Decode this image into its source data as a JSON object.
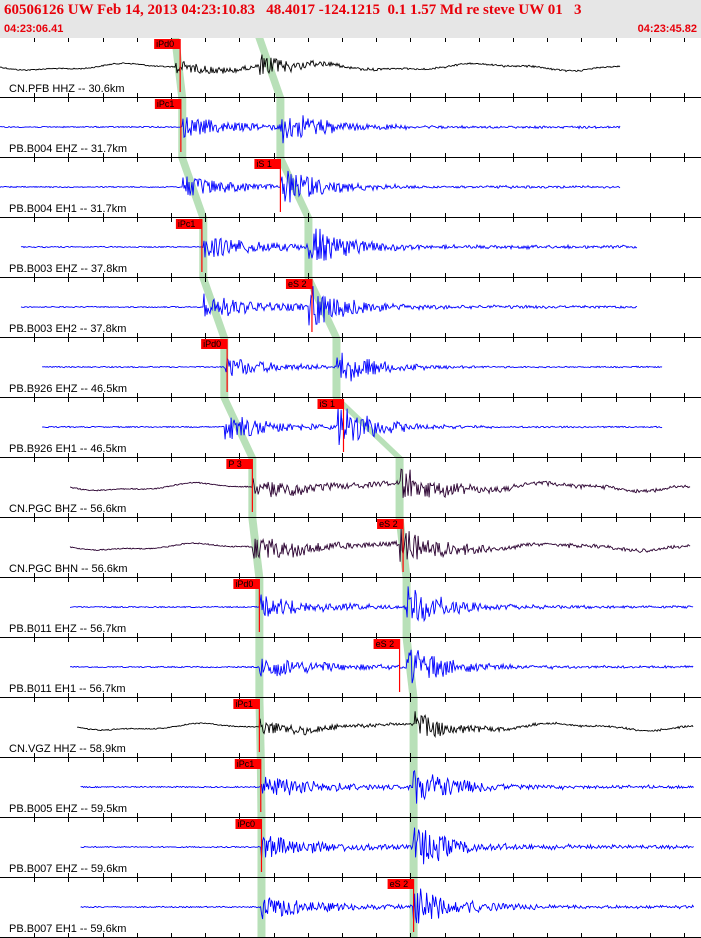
{
  "header": {
    "title": "60506126 UW Feb 14, 2013 04:23:10.83   48.4017 -124.1215  0.1 1.57 Md re steve UW 01   3",
    "start_time": "04:23:06.41",
    "end_time": "04:23:45.82"
  },
  "colors": {
    "header_bg": "#e6e6e6",
    "header_text": "#e8000a",
    "trace_blue": "#0000ff",
    "trace_black": "#000000",
    "trace_purple": "#2a0030",
    "pick_red": "#ff0000",
    "theory_green": "#b8e0b8"
  },
  "chart_data": {
    "type": "line",
    "title": "60506126 UW Feb 14, 2013 04:23:10.83   48.4017 -124.1215  0.1 1.57 Md re steve UW 01   3",
    "x_range": [
      "04:23:06.41",
      "04:23:45.82"
    ],
    "channels": [
      {
        "name": "CN.PFB HHZ -- 30.6km",
        "color": "black",
        "start": 0,
        "end": 0.885,
        "p_arrival": 0.25,
        "s_arrival": 0.37,
        "amp": 0.45,
        "coda": 0.1,
        "lowfreq": 0.35,
        "picks": [
          {
            "label": "iPd0",
            "t": 0.257
          }
        ]
      },
      {
        "name": "PB.B004 EHZ -- 31.7km",
        "color": "blue",
        "start": 0,
        "end": 0.885,
        "p_arrival": 0.26,
        "s_arrival": 0.4,
        "amp": 0.7,
        "coda": 0.12,
        "lowfreq": 0,
        "picks": [
          {
            "label": "iPc1",
            "t": 0.258
          }
        ]
      },
      {
        "name": "PB.B004 EH1 -- 31.7km",
        "color": "blue",
        "start": 0,
        "end": 0.885,
        "p_arrival": 0.26,
        "s_arrival": 0.4,
        "amp": 0.75,
        "coda": 0.1,
        "lowfreq": 0,
        "picks": [
          {
            "label": "iS 1",
            "t": 0.4
          }
        ]
      },
      {
        "name": "PB.B003 EHZ -- 37.8km",
        "color": "blue",
        "start": 0.03,
        "end": 0.91,
        "p_arrival": 0.29,
        "s_arrival": 0.44,
        "amp": 0.8,
        "coda": 0.15,
        "lowfreq": 0,
        "picks": [
          {
            "label": "iPc1",
            "t": 0.288
          }
        ]
      },
      {
        "name": "PB.B003 EH2 -- 37.8km",
        "color": "blue",
        "start": 0.03,
        "end": 0.91,
        "p_arrival": 0.29,
        "s_arrival": 0.44,
        "amp": 0.85,
        "coda": 0.12,
        "lowfreq": 0,
        "picks": [
          {
            "label": "eS 2",
            "t": 0.445
          }
        ]
      },
      {
        "name": "PB.B926 EHZ -- 46.5km",
        "color": "blue",
        "start": 0.06,
        "end": 0.945,
        "p_arrival": 0.32,
        "s_arrival": 0.48,
        "amp": 0.75,
        "coda": 0.02,
        "lowfreq": 0,
        "picks": [
          {
            "label": "iPd0",
            "t": 0.324
          }
        ]
      },
      {
        "name": "PB.B926 EH1 -- 46.5km",
        "color": "blue",
        "start": 0.06,
        "end": 0.945,
        "p_arrival": 0.32,
        "s_arrival": 0.48,
        "amp": 0.95,
        "coda": 0.03,
        "lowfreq": 0,
        "picks": [
          {
            "label": "iS 1",
            "t": 0.49
          }
        ]
      },
      {
        "name": "CN.PGC BHZ -- 56.6km",
        "color": "purple",
        "start": 0.1,
        "end": 0.985,
        "p_arrival": 0.36,
        "s_arrival": 0.57,
        "amp": 0.7,
        "coda": 0.2,
        "lowfreq": 0.4,
        "picks": [
          {
            "label": "P 3",
            "t": 0.36
          }
        ]
      },
      {
        "name": "CN.PGC BHN -- 56.6km",
        "color": "purple",
        "start": 0.1,
        "end": 0.985,
        "p_arrival": 0.36,
        "s_arrival": 0.57,
        "amp": 0.85,
        "coda": 0.15,
        "lowfreq": 0.35,
        "picks": [
          {
            "label": "eS 2",
            "t": 0.575
          }
        ]
      },
      {
        "name": "PB.B011 EHZ -- 56.7km",
        "color": "blue",
        "start": 0.1,
        "end": 0.99,
        "p_arrival": 0.37,
        "s_arrival": 0.58,
        "amp": 0.8,
        "coda": 0.12,
        "lowfreq": 0,
        "picks": [
          {
            "label": "iPd0",
            "t": 0.37
          }
        ]
      },
      {
        "name": "PB.B011 EH1 -- 56.7km",
        "color": "blue",
        "start": 0.1,
        "end": 0.99,
        "p_arrival": 0.37,
        "s_arrival": 0.58,
        "amp": 0.85,
        "coda": 0.1,
        "lowfreq": 0,
        "picks": [
          {
            "label": "eS 2",
            "t": 0.57
          }
        ]
      },
      {
        "name": "CN.VGZ HHZ -- 58.9km",
        "color": "black",
        "start": 0.11,
        "end": 0.99,
        "p_arrival": 0.37,
        "s_arrival": 0.59,
        "amp": 0.55,
        "coda": 0.1,
        "lowfreq": 0.35,
        "picks": [
          {
            "label": "iPc1",
            "t": 0.37
          }
        ]
      },
      {
        "name": "PB.B005 EHZ -- 59.5km",
        "color": "blue",
        "start": 0.115,
        "end": 0.99,
        "p_arrival": 0.372,
        "s_arrival": 0.59,
        "amp": 0.8,
        "coda": 0.15,
        "lowfreq": 0,
        "picks": [
          {
            "label": "iPc1",
            "t": 0.372
          }
        ]
      },
      {
        "name": "PB.B007 EHZ -- 59.6km",
        "color": "blue",
        "start": 0.115,
        "end": 0.99,
        "p_arrival": 0.373,
        "s_arrival": 0.59,
        "amp": 0.85,
        "coda": 0.15,
        "lowfreq": 0,
        "picks": [
          {
            "label": "iPc0",
            "t": 0.373
          }
        ]
      },
      {
        "name": "PB.B007 EH1 -- 59.6km",
        "color": "blue",
        "start": 0.115,
        "end": 0.99,
        "p_arrival": 0.373,
        "s_arrival": 0.59,
        "amp": 0.8,
        "coda": 0.15,
        "lowfreq": 0,
        "picks": [
          {
            "label": "eS 2",
            "t": 0.59
          }
        ]
      }
    ]
  }
}
